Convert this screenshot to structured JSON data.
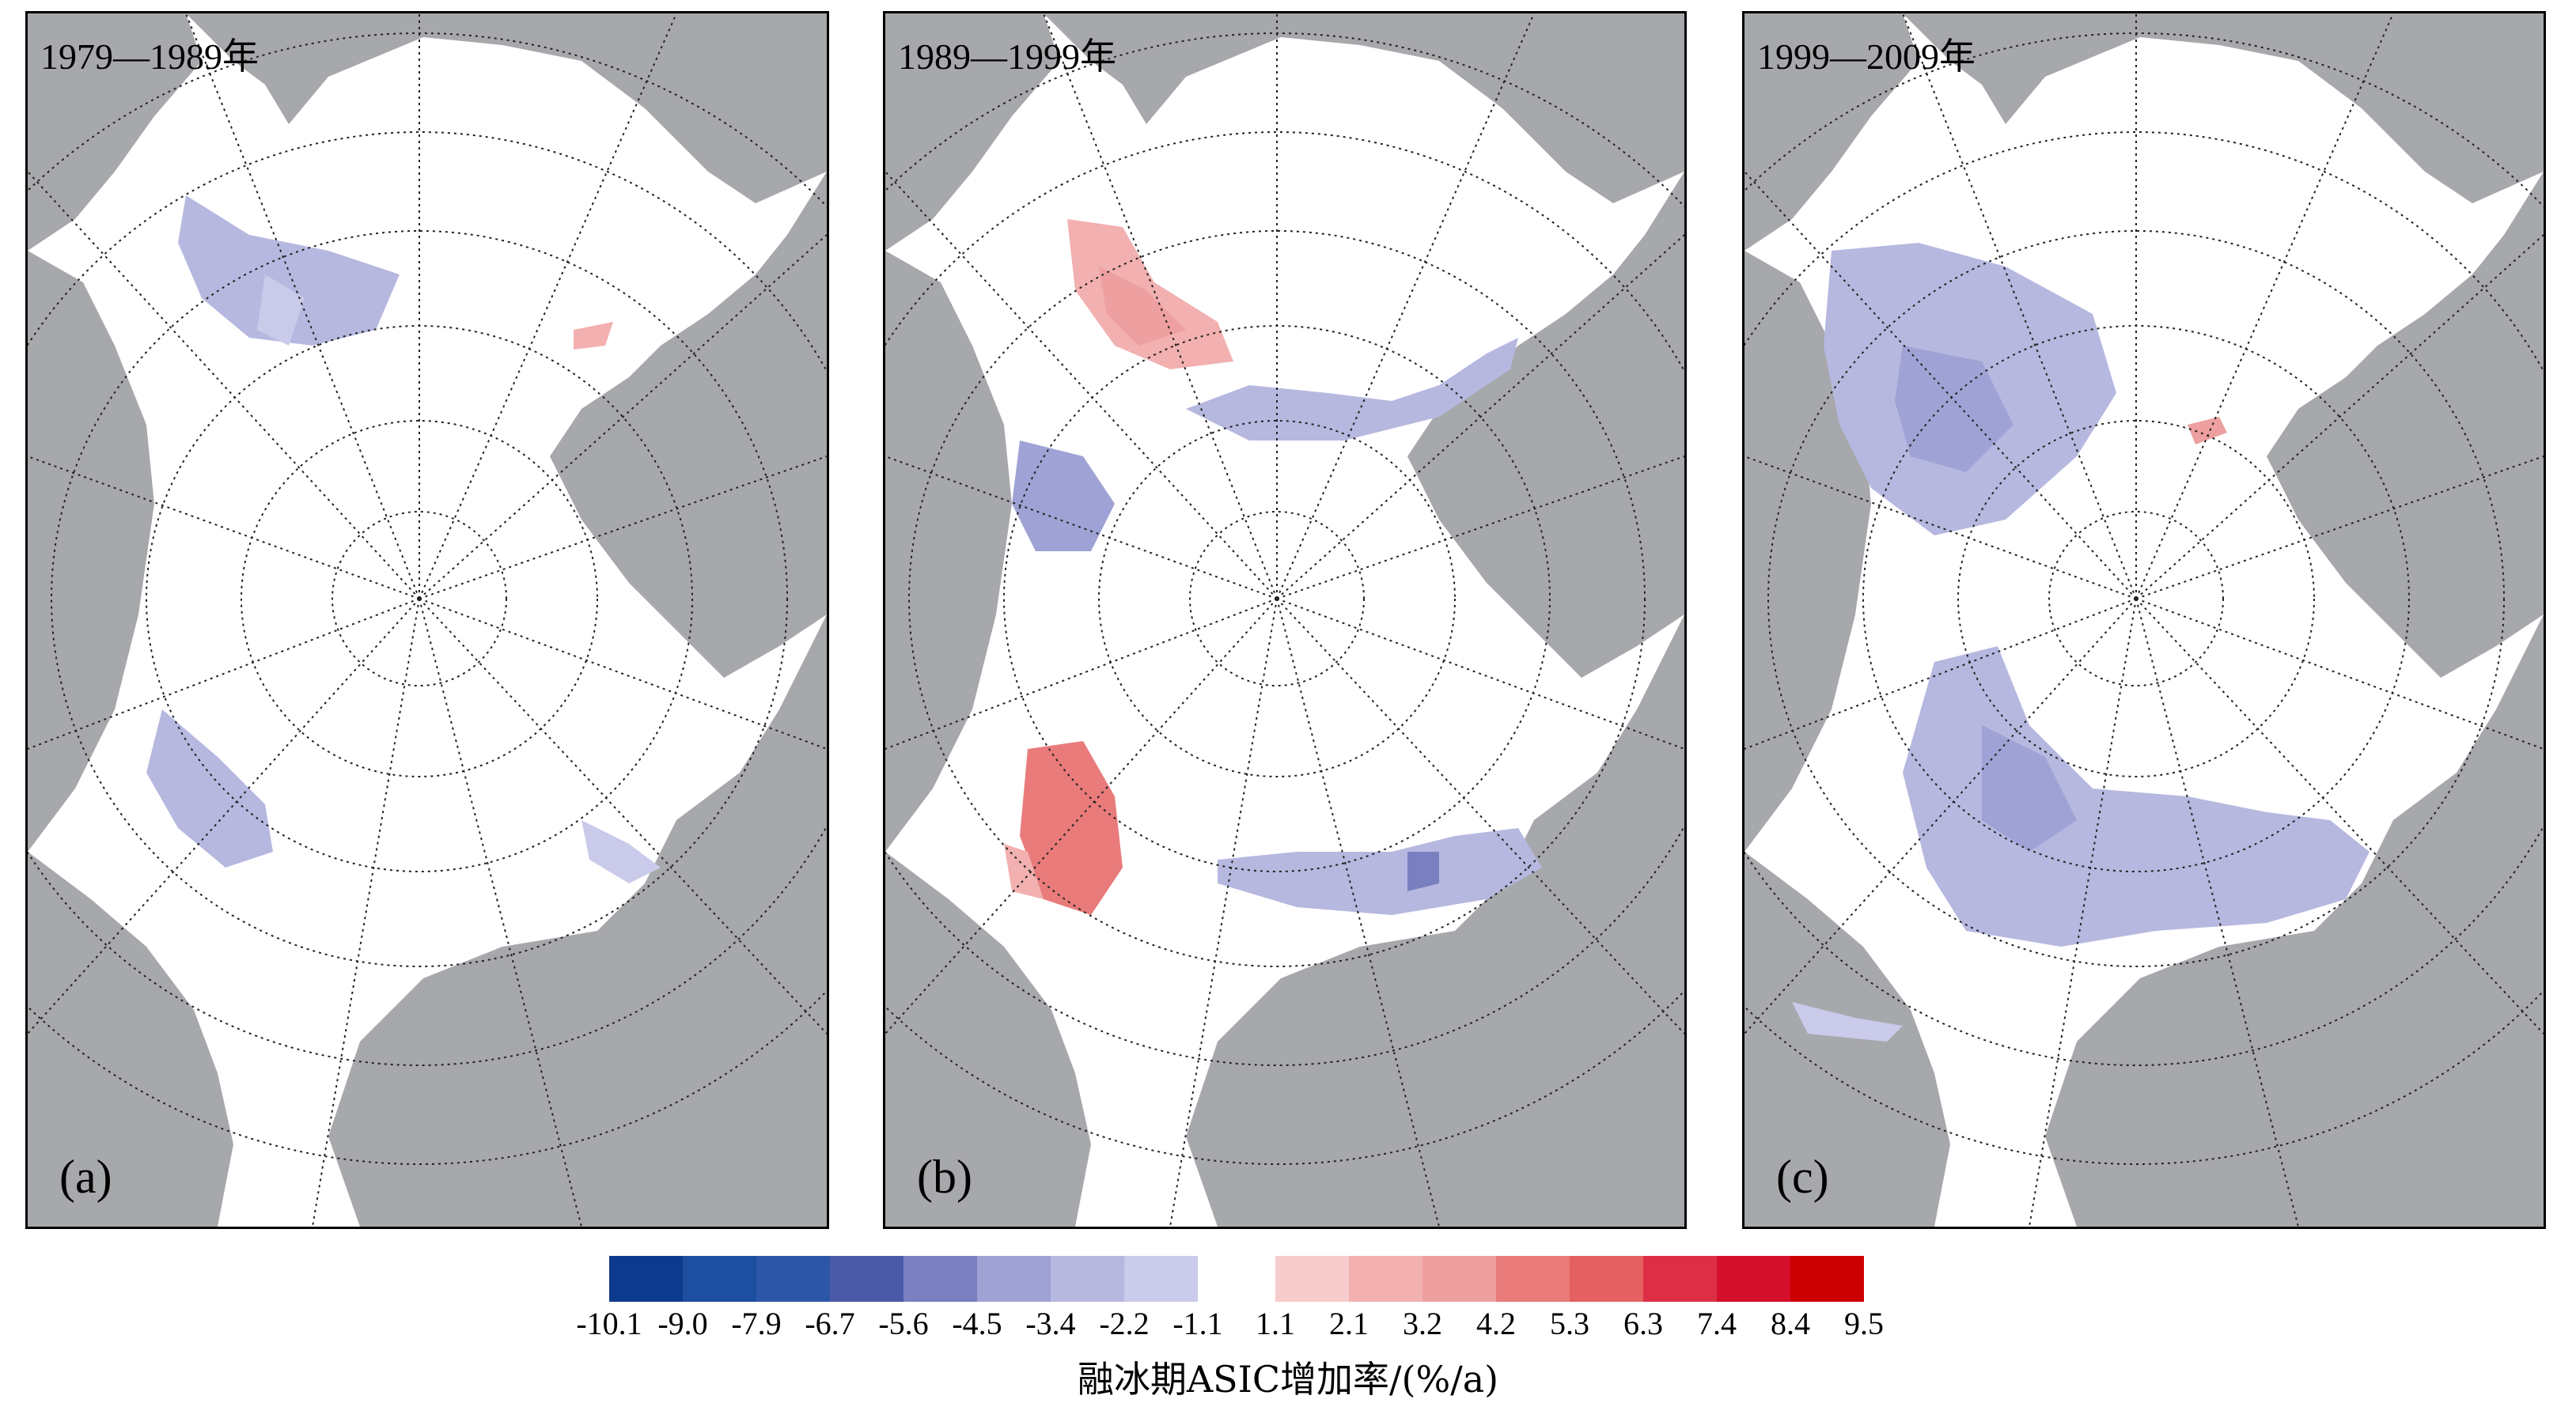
{
  "panels": [
    {
      "title": "1979—1989年",
      "letter": "(a)"
    },
    {
      "title": "1989—1999年",
      "letter": "(b)"
    },
    {
      "title": "1999—2009年",
      "letter": "(c)"
    }
  ],
  "colors": {
    "land": "#a7a8ac",
    "ocean": "#ffffff",
    "neg_bins": [
      "#0d3a8c",
      "#1d4ea0",
      "#2c57a6",
      "#4b5aa8",
      "#7a7fc0",
      "#9fa2d4",
      "#b6b8e0",
      "#cacbea"
    ],
    "pos_bins": [
      "#f7cccc",
      "#f2b0b0",
      "#ee9f9f",
      "#e97b7b",
      "#e56060",
      "#dc2f45",
      "#d4102a",
      "#cc0000"
    ]
  },
  "colorbar": {
    "neg_labels": [
      "-10.1",
      "-9.0",
      "-7.9",
      "-6.7",
      "-5.6",
      "-4.5",
      "-3.4",
      "-2.2",
      "-1.1"
    ],
    "pos_labels": [
      "1.1",
      "2.1",
      "3.2",
      "4.2",
      "5.3",
      "6.3",
      "7.4",
      "8.4",
      "9.5"
    ],
    "title": "融冰期ASIC增加率/(%/a)"
  }
}
